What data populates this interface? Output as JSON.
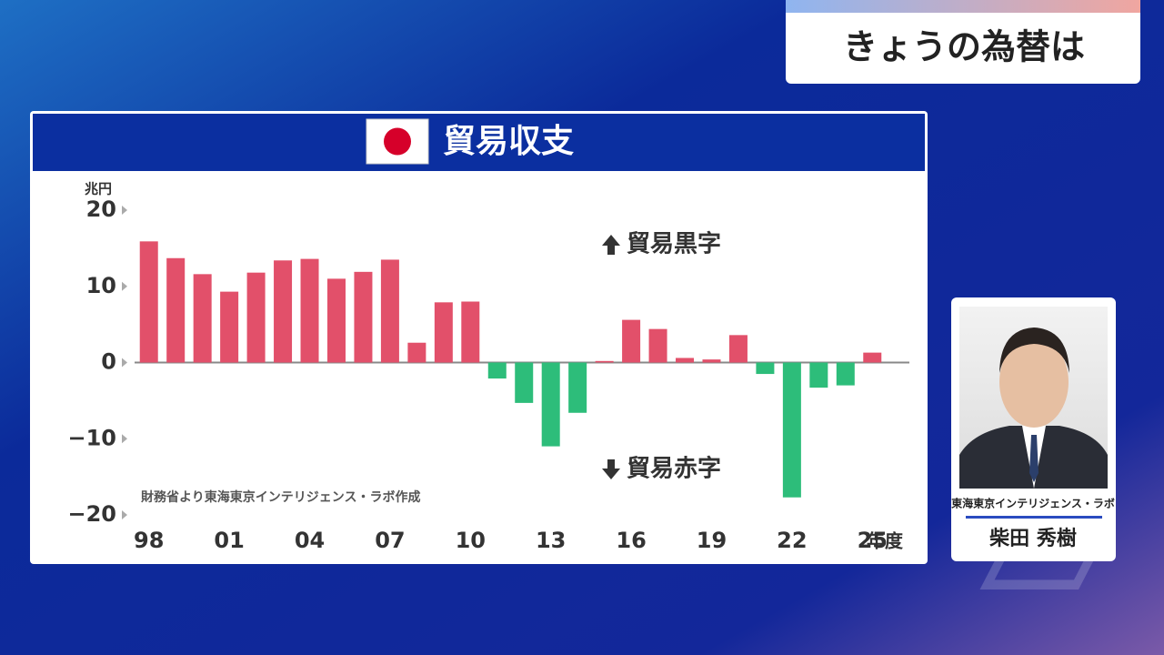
{
  "header": {
    "title": "きょうの為替は"
  },
  "chart_data": {
    "type": "bar",
    "title": "貿易収支",
    "y_unit": "兆円",
    "x_unit": "年度",
    "categories": [
      "98",
      null,
      null,
      "01",
      null,
      null,
      "04",
      null,
      null,
      "07",
      null,
      null,
      "10",
      null,
      null,
      "13",
      null,
      null,
      "16",
      null,
      null,
      "19",
      null,
      null,
      "22",
      null,
      null,
      "25"
    ],
    "values": [
      15.9,
      13.7,
      11.6,
      9.3,
      11.8,
      13.4,
      13.6,
      11.0,
      11.9,
      13.5,
      2.6,
      7.9,
      8.0,
      -2.1,
      -5.3,
      -11.0,
      -6.6,
      0.2,
      5.6,
      4.4,
      0.6,
      0.4,
      3.6,
      -1.5,
      -17.7,
      -3.3,
      -3.0,
      1.3
    ],
    "positive_color": "#e2506a",
    "negative_color": "#2dbd7a",
    "ylim": [
      -20,
      20
    ],
    "yticks": [
      20,
      10,
      0,
      {
        "value": -10,
        "label": "−10"
      },
      {
        "value": -20,
        "label": "−20"
      }
    ],
    "annotations": [
      "貿易黒字",
      "貿易赤字"
    ],
    "source": "財務省より東海東京インテリジェンス・ラボ作成"
  },
  "presenter": {
    "affiliation": "東海東京インテリジェンス・ラボ",
    "name": "柴田 秀樹"
  }
}
